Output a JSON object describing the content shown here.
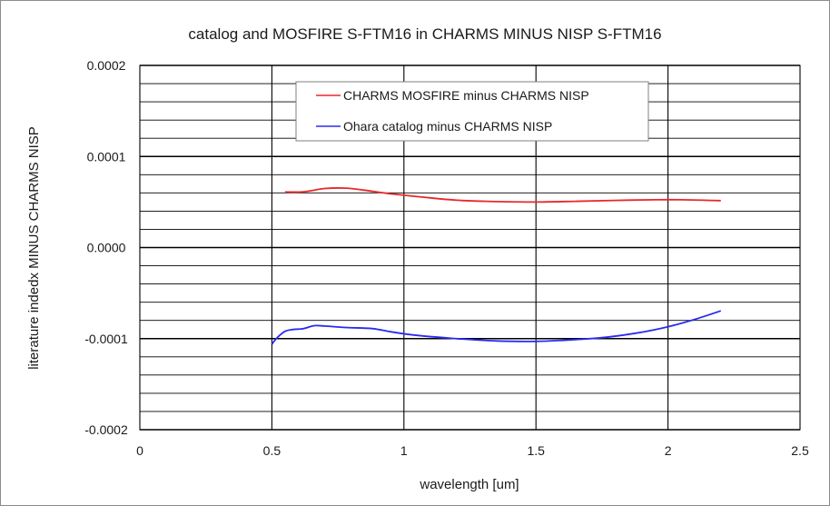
{
  "chart_data": {
    "type": "line",
    "title": "catalog and MOSFIRE S-FTM16 in CHARMS MINUS NISP S-FTM16",
    "xlabel": "wavelength [um]",
    "ylabel": "literature indedx MINUS CHARMS NISP",
    "xlim": [
      0,
      2.5
    ],
    "ylim": [
      -0.0002,
      0.0002
    ],
    "x_ticks": [
      0,
      0.5,
      1,
      1.5,
      2,
      2.5
    ],
    "x_tick_labels": [
      "0",
      "0.5",
      "1",
      "1.5",
      "2",
      "2.5"
    ],
    "y_ticks": [
      0.0002,
      0.0001,
      0.0,
      -0.0001,
      -0.0002
    ],
    "y_tick_labels": [
      "0.0002",
      "0.0001",
      "0.0000",
      "-0.0001",
      "-0.0002"
    ],
    "y_minor_step": 2e-05,
    "grid": true,
    "legend_position": "top-center",
    "series": [
      {
        "name": "CHARMS MOSFIRE minus CHARMS NISP",
        "color": "#e8282b",
        "x": [
          0.55,
          0.62,
          0.7,
          0.78,
          0.85,
          0.95,
          1.05,
          1.2,
          1.35,
          1.5,
          1.65,
          1.8,
          1.95,
          2.05,
          2.2
        ],
        "y": [
          6.1e-05,
          6.12e-05,
          6.48e-05,
          6.52e-05,
          6.3e-05,
          5.9e-05,
          5.6e-05,
          5.2e-05,
          5.05e-05,
          5e-05,
          5.08e-05,
          5.18e-05,
          5.25e-05,
          5.25e-05,
          5.15e-05
        ]
      },
      {
        "name": "Ohara catalog minus CHARMS NISP",
        "color": "#2b2bef",
        "x": [
          0.5,
          0.52,
          0.55,
          0.58,
          0.62,
          0.66,
          0.7,
          0.78,
          0.88,
          0.95,
          1.05,
          1.2,
          1.35,
          1.5,
          1.62,
          1.75,
          1.88,
          2.0,
          2.1,
          2.2
        ],
        "y": [
          -0.000106,
          -9.9e-05,
          -9.2e-05,
          -9e-05,
          -8.9e-05,
          -8.58e-05,
          -8.62e-05,
          -8.78e-05,
          -8.9e-05,
          -9.25e-05,
          -9.65e-05,
          -0.0001,
          -0.0001025,
          -0.000103,
          -0.0001015,
          -9.9e-05,
          -9.4e-05,
          -8.7e-05,
          -7.9e-05,
          -6.95e-05
        ]
      }
    ]
  }
}
